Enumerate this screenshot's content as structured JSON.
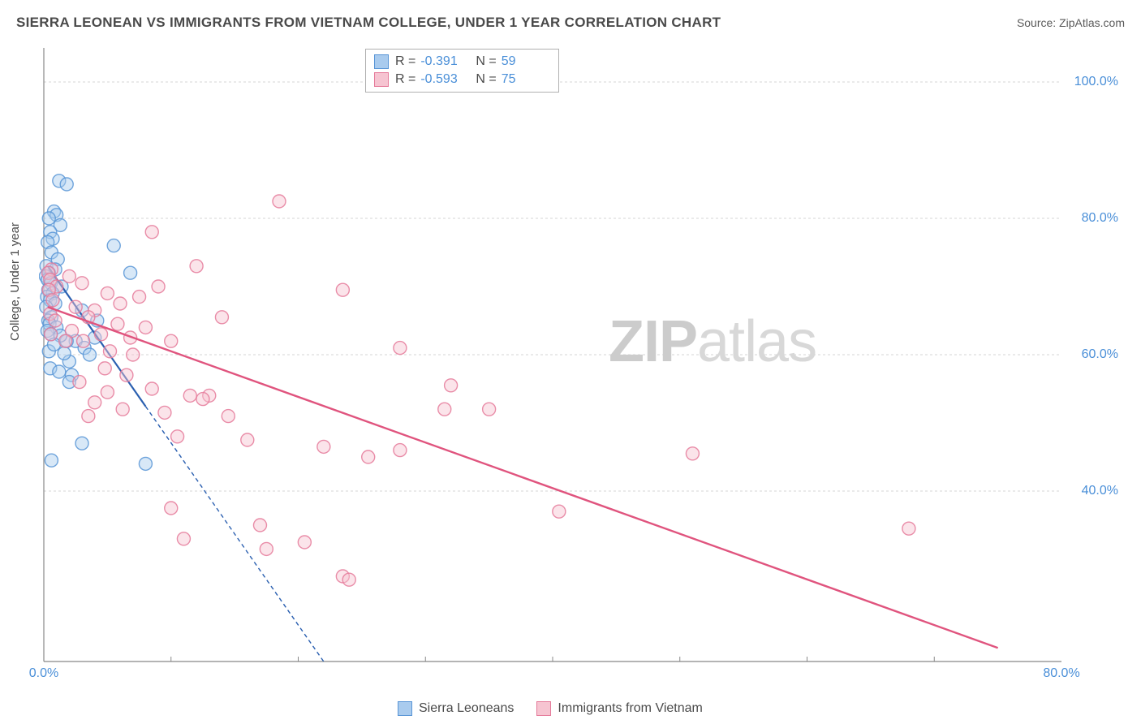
{
  "header": {
    "title": "SIERRA LEONEAN VS IMMIGRANTS FROM VIETNAM COLLEGE, UNDER 1 YEAR CORRELATION CHART",
    "source_prefix": "Source: ",
    "source": "ZipAtlas.com"
  },
  "chart": {
    "type": "scatter",
    "y_axis_label": "College, Under 1 year",
    "background_color": "#ffffff",
    "grid_color": "#d5d5d5",
    "axis_line_color": "#888888",
    "tick_label_color": "#4a8fd8",
    "tick_label_fontsize": 16,
    "axis_label_color": "#4a4a4a",
    "axis_label_fontsize": 15,
    "xlim": [
      0,
      80
    ],
    "ylim": [
      15,
      105
    ],
    "y_ticks": [
      40,
      60,
      80,
      100
    ],
    "y_tick_labels": [
      "40.0%",
      "60.0%",
      "80.0%",
      "100.0%"
    ],
    "x_ticks": [
      0,
      80
    ],
    "x_tick_labels": [
      "0.0%",
      "80.0%"
    ],
    "x_minor_ticks": [
      10,
      20,
      30,
      40,
      50,
      60,
      70
    ],
    "marker_radius": 8,
    "marker_opacity": 0.45,
    "marker_stroke_width": 1.4,
    "series": [
      {
        "name": "Sierra Leoneans",
        "color_fill": "#a9cbee",
        "color_stroke": "#5895d6",
        "regression_line_color": "#2a5fb0",
        "regression_line_width": 2.2,
        "regression_dash": "5,4",
        "regression_solid_until_x": 8,
        "r_value": "-0.391",
        "n_value": "59",
        "line": {
          "x1": 0.3,
          "y1": 73,
          "x2": 22,
          "y2": 15
        },
        "points": [
          [
            1.2,
            85.5
          ],
          [
            1.8,
            85.0
          ],
          [
            0.8,
            81.0
          ],
          [
            1.0,
            80.5
          ],
          [
            0.4,
            80.0
          ],
          [
            1.3,
            79.0
          ],
          [
            0.5,
            78.0
          ],
          [
            0.7,
            77.0
          ],
          [
            0.3,
            76.5
          ],
          [
            5.5,
            76.0
          ],
          [
            0.6,
            75.0
          ],
          [
            1.1,
            74.0
          ],
          [
            0.2,
            73.0
          ],
          [
            0.9,
            72.5
          ],
          [
            0.4,
            72.0
          ],
          [
            0.15,
            71.5
          ],
          [
            6.8,
            72.0
          ],
          [
            0.3,
            71.0
          ],
          [
            0.55,
            70.5
          ],
          [
            1.4,
            70.0
          ],
          [
            0.35,
            69.5
          ],
          [
            0.7,
            69.0
          ],
          [
            0.25,
            68.5
          ],
          [
            0.5,
            68.0
          ],
          [
            0.9,
            67.5
          ],
          [
            0.18,
            67.0
          ],
          [
            3.0,
            66.5
          ],
          [
            0.6,
            65.5
          ],
          [
            0.35,
            65.0
          ],
          [
            4.2,
            65.0
          ],
          [
            0.45,
            64.5
          ],
          [
            1.0,
            64.0
          ],
          [
            0.28,
            63.5
          ],
          [
            0.55,
            63.0
          ],
          [
            2.5,
            62.0
          ],
          [
            4.0,
            62.5
          ],
          [
            3.2,
            61.0
          ],
          [
            0.4,
            60.5
          ],
          [
            3.6,
            60.0
          ],
          [
            2.0,
            59.0
          ],
          [
            0.5,
            58.0
          ],
          [
            1.2,
            57.5
          ],
          [
            2.2,
            57.0
          ],
          [
            2.0,
            56.0
          ],
          [
            1.8,
            62.0
          ],
          [
            1.3,
            62.8
          ],
          [
            0.8,
            61.5
          ],
          [
            1.6,
            60.2
          ],
          [
            3.0,
            47.0
          ],
          [
            0.6,
            44.5
          ],
          [
            8.0,
            44.0
          ]
        ]
      },
      {
        "name": "Immigrants from Vietnam",
        "color_fill": "#f6c4d1",
        "color_stroke": "#e57a9a",
        "regression_line_color": "#e0547e",
        "regression_line_width": 2.4,
        "regression_dash": "none",
        "regression_solid_until_x": 80,
        "r_value": "-0.593",
        "n_value": "75",
        "line": {
          "x1": 0.3,
          "y1": 67,
          "x2": 75,
          "y2": 17
        },
        "points": [
          [
            18.5,
            82.5
          ],
          [
            8.5,
            78.0
          ],
          [
            12.0,
            73.0
          ],
          [
            0.6,
            72.5
          ],
          [
            0.35,
            72.0
          ],
          [
            2.0,
            71.5
          ],
          [
            0.5,
            71.0
          ],
          [
            3.0,
            70.5
          ],
          [
            1.0,
            70.0
          ],
          [
            9.0,
            70.0
          ],
          [
            0.4,
            69.5
          ],
          [
            23.5,
            69.5
          ],
          [
            5.0,
            69.0
          ],
          [
            7.5,
            68.5
          ],
          [
            0.7,
            68.0
          ],
          [
            6.0,
            67.5
          ],
          [
            2.5,
            67.0
          ],
          [
            4.0,
            66.5
          ],
          [
            0.5,
            66.0
          ],
          [
            3.5,
            65.5
          ],
          [
            14.0,
            65.5
          ],
          [
            0.9,
            65.0
          ],
          [
            5.8,
            64.5
          ],
          [
            8.0,
            64.0
          ],
          [
            2.2,
            63.5
          ],
          [
            4.5,
            63.0
          ],
          [
            0.55,
            63.0
          ],
          [
            6.8,
            62.5
          ],
          [
            1.7,
            62.0
          ],
          [
            3.1,
            62.0
          ],
          [
            10.0,
            62.0
          ],
          [
            28.0,
            61.0
          ],
          [
            5.2,
            60.5
          ],
          [
            7.0,
            60.0
          ],
          [
            4.8,
            58.0
          ],
          [
            6.5,
            57.0
          ],
          [
            2.8,
            56.0
          ],
          [
            8.5,
            55.0
          ],
          [
            5.0,
            54.5
          ],
          [
            13.0,
            54.0
          ],
          [
            11.5,
            54.0
          ],
          [
            12.5,
            53.5
          ],
          [
            4.0,
            53.0
          ],
          [
            32.0,
            55.5
          ],
          [
            6.2,
            52.0
          ],
          [
            9.5,
            51.5
          ],
          [
            14.5,
            51.0
          ],
          [
            31.5,
            52.0
          ],
          [
            35.0,
            52.0
          ],
          [
            3.5,
            51.0
          ],
          [
            10.5,
            48.0
          ],
          [
            16.0,
            47.5
          ],
          [
            22.0,
            46.5
          ],
          [
            28.0,
            46.0
          ],
          [
            25.5,
            45.0
          ],
          [
            51.0,
            45.5
          ],
          [
            10.0,
            37.5
          ],
          [
            40.5,
            37.0
          ],
          [
            17.0,
            35.0
          ],
          [
            68.0,
            34.5
          ],
          [
            11.0,
            33.0
          ],
          [
            20.5,
            32.5
          ],
          [
            17.5,
            31.5
          ],
          [
            23.5,
            27.5
          ],
          [
            24.0,
            27.0
          ]
        ]
      }
    ]
  },
  "stats_box": {
    "rows": [
      {
        "swatch_fill": "#a9cbee",
        "swatch_stroke": "#5895d6",
        "r_label": "R =",
        "r": "-0.391",
        "n_label": "N =",
        "n": "59"
      },
      {
        "swatch_fill": "#f6c4d1",
        "swatch_stroke": "#e57a9a",
        "r_label": "R =",
        "r": "-0.593",
        "n_label": "N =",
        "n": "75"
      }
    ]
  },
  "legend": {
    "items": [
      {
        "swatch_fill": "#a9cbee",
        "swatch_stroke": "#5895d6",
        "label": "Sierra Leoneans"
      },
      {
        "swatch_fill": "#f6c4d1",
        "swatch_stroke": "#e57a9a",
        "label": "Immigrants from Vietnam"
      }
    ]
  },
  "watermark": {
    "part1": "ZIP",
    "part2": "atlas"
  }
}
